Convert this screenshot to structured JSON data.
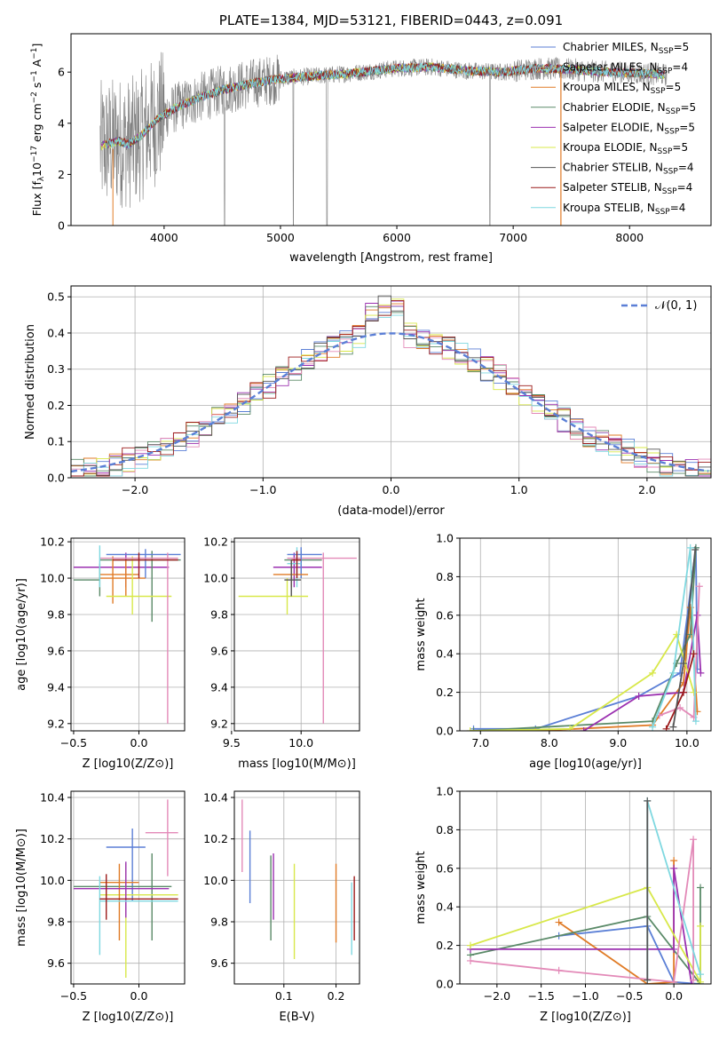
{
  "colors": {
    "chabrier_miles": "#5b7fd6",
    "salpeter_miles": "#a0a0a0",
    "kroupa_miles": "#e07b26",
    "chabrier_elodie": "#5a8a68",
    "salpeter_elodie": "#9b30b0",
    "kroupa_elodie": "#d8e84a",
    "chabrier_stelib": "#555555",
    "salpeter_stelib": "#9c1b1b",
    "kroupa_stelib": "#7fd8e0",
    "pink": "#e38ab8",
    "gauss": "#5b7fd6",
    "spectrum_grey": "#808080"
  },
  "chart_data": [
    {
      "id": "spectrum",
      "type": "line",
      "title": "PLATE=1384, MJD=53121, FIBERID=0443, z=0.091",
      "xlabel": "wavelength [Angstrom, rest frame]",
      "ylabel": "Flux [f_λ 10^-17 erg cm^-2 s^-1 A^-1]",
      "xlim": [
        3200,
        8700
      ],
      "ylim": [
        0,
        7.5
      ],
      "xticks": [
        4000,
        5000,
        6000,
        7000,
        8000
      ],
      "yticks": [
        0,
        2,
        4,
        6
      ],
      "legend_position": "upper right",
      "legend": [
        {
          "label": "Chabrier MILES, N",
          "sub": "SSP",
          "suffix": "=5"
        },
        {
          "label": "Salpeter MILES, N",
          "sub": "SSP",
          "suffix": "=4"
        },
        {
          "label": "Kroupa MILES, N",
          "sub": "SSP",
          "suffix": "=5"
        },
        {
          "label": "Chabrier ELODIE, N",
          "sub": "SSP",
          "suffix": "=5"
        },
        {
          "label": "Salpeter ELODIE, N",
          "sub": "SSP",
          "suffix": "=5"
        },
        {
          "label": "Kroupa ELODIE, N",
          "sub": "SSP",
          "suffix": "=5"
        },
        {
          "label": "Chabrier STELIB, N",
          "sub": "SSP",
          "suffix": "=4"
        },
        {
          "label": "Salpeter STELIB, N",
          "sub": "SSP",
          "suffix": "=4"
        },
        {
          "label": "Kroupa STELIB, N",
          "sub": "SSP",
          "suffix": "=4"
        }
      ],
      "continuum_model": [
        [
          3450,
          3.1
        ],
        [
          3600,
          3.3
        ],
        [
          3700,
          3.2
        ],
        [
          3800,
          3.5
        ],
        [
          3950,
          4.2
        ],
        [
          4100,
          4.6
        ],
        [
          4300,
          5.0
        ],
        [
          4500,
          5.3
        ],
        [
          4800,
          5.6
        ],
        [
          5000,
          5.75
        ],
        [
          5300,
          5.85
        ],
        [
          5600,
          5.95
        ],
        [
          6000,
          6.15
        ],
        [
          6300,
          6.2
        ],
        [
          6600,
          6.05
        ],
        [
          6900,
          6.0
        ],
        [
          7200,
          6.15
        ],
        [
          7500,
          6.1
        ],
        [
          7800,
          6.0
        ],
        [
          8100,
          5.95
        ],
        [
          8300,
          5.9
        ]
      ]
    },
    {
      "id": "residuals",
      "type": "histogram",
      "xlabel": "(data-model)/error",
      "ylabel": "Normed distribution",
      "xlim": [
        -2.5,
        2.5
      ],
      "ylim": [
        0,
        0.53
      ],
      "xticks": [
        -2,
        -1,
        0,
        1,
        2
      ],
      "yticks": [
        0.0,
        0.1,
        0.2,
        0.3,
        0.4,
        0.5
      ],
      "legend": "𝒩(0, 1)",
      "legend_position": "upper right",
      "bin_width": 0.1
    },
    {
      "id": "age_vs_Z",
      "type": "errorbar",
      "xlabel": "Z [log10(Z/Z⊙)]",
      "ylabel": "age  [log10(age/yr)]",
      "xlim": [
        -0.52,
        0.35
      ],
      "ylim": [
        9.16,
        10.22
      ],
      "xticks": [
        -0.5,
        0.0
      ],
      "yticks": [
        9.2,
        9.4,
        9.6,
        9.8,
        10.0,
        10.2
      ],
      "points": [
        {
          "x": -0.3,
          "y": 9.99,
          "xlo": -0.5,
          "xhi": -0.3,
          "ylo": 9.9,
          "yhi": 10.08,
          "c": "chabrier_elodie"
        },
        {
          "x": -0.1,
          "y": 10.06,
          "xlo": -0.5,
          "xhi": 0.23,
          "ylo": 9.95,
          "yhi": 10.14,
          "c": "salpeter_elodie"
        },
        {
          "x": 0.1,
          "y": 10.1,
          "xlo": -0.3,
          "xhi": 0.32,
          "ylo": 9.76,
          "yhi": 10.15,
          "c": "chabrier_elodie"
        },
        {
          "x": 0.05,
          "y": 10.13,
          "xlo": -0.25,
          "xhi": 0.32,
          "ylo": 10.0,
          "yhi": 10.16,
          "c": "chabrier_miles"
        },
        {
          "x": -0.1,
          "y": 10.02,
          "xlo": -0.3,
          "xhi": 0.0,
          "ylo": 9.9,
          "yhi": 10.1,
          "c": "kroupa_miles"
        },
        {
          "x": -0.2,
          "y": 10.0,
          "xlo": -0.3,
          "xhi": 0.05,
          "ylo": 9.86,
          "yhi": 10.12,
          "c": "kroupa_miles"
        },
        {
          "x": -0.05,
          "y": 9.9,
          "xlo": -0.25,
          "xhi": 0.25,
          "ylo": 9.8,
          "yhi": 10.12,
          "c": "kroupa_elodie"
        },
        {
          "x": 0.22,
          "y": 10.11,
          "xlo": -0.3,
          "xhi": 0.3,
          "ylo": 9.2,
          "yhi": 10.14,
          "c": "pink"
        },
        {
          "x": -0.3,
          "y": 10.08,
          "xlo": -0.3,
          "xhi": -0.3,
          "ylo": 9.95,
          "yhi": 10.18,
          "c": "kroupa_stelib"
        },
        {
          "x": 0.0,
          "y": 10.1,
          "xlo": -0.2,
          "xhi": 0.3,
          "ylo": 10.0,
          "yhi": 10.14,
          "c": "salpeter_stelib"
        }
      ]
    },
    {
      "id": "age_vs_mass",
      "type": "errorbar",
      "xlabel": "mass [log10(M/M⊙)]",
      "ylabel": "",
      "xlim": [
        9.52,
        10.42
      ],
      "ylim": [
        9.16,
        10.22
      ],
      "xticks": [
        9.5,
        10.0
      ],
      "yticks": [
        9.2,
        9.4,
        9.6,
        9.8,
        10.0,
        10.2
      ],
      "points": [
        {
          "x": 9.9,
          "y": 9.9,
          "xlo": 9.55,
          "xhi": 10.05,
          "ylo": 9.8,
          "yhi": 10.0,
          "c": "kroupa_elodie"
        },
        {
          "x": 10.0,
          "y": 10.1,
          "xlo": 9.88,
          "xhi": 10.15,
          "ylo": 10.0,
          "yhi": 10.15,
          "c": "chabrier_elodie"
        },
        {
          "x": 9.95,
          "y": 10.06,
          "xlo": 9.8,
          "xhi": 10.15,
          "ylo": 9.95,
          "yhi": 10.14,
          "c": "salpeter_elodie"
        },
        {
          "x": 10.16,
          "y": 10.11,
          "xlo": 9.9,
          "xhi": 10.4,
          "ylo": 9.2,
          "yhi": 10.14,
          "c": "pink"
        },
        {
          "x": 10.0,
          "y": 10.13,
          "xlo": 9.9,
          "xhi": 10.15,
          "ylo": 10.0,
          "yhi": 10.17,
          "c": "chabrier_miles"
        },
        {
          "x": 9.93,
          "y": 10.02,
          "xlo": 9.8,
          "xhi": 10.05,
          "ylo": 9.95,
          "yhi": 10.1,
          "c": "kroupa_miles"
        },
        {
          "x": 9.97,
          "y": 10.08,
          "xlo": 9.9,
          "xhi": 10.0,
          "ylo": 9.95,
          "yhi": 10.17,
          "c": "kroupa_stelib"
        },
        {
          "x": 9.97,
          "y": 10.1,
          "xlo": 9.93,
          "xhi": 10.0,
          "ylo": 10.0,
          "yhi": 10.15,
          "c": "salpeter_stelib"
        },
        {
          "x": 9.93,
          "y": 9.99,
          "xlo": 9.88,
          "xhi": 10.0,
          "ylo": 9.9,
          "yhi": 10.1,
          "c": "chabrier_stelib"
        }
      ]
    },
    {
      "id": "weight_vs_age",
      "type": "line",
      "xlabel": "age  [log10(age/yr)]",
      "ylabel": "mass weight",
      "xlim": [
        6.7,
        10.35
      ],
      "ylim": [
        0,
        1.0
      ],
      "xticks": [
        7,
        8,
        9,
        10
      ],
      "yticks": [
        0.0,
        0.2,
        0.4,
        0.6,
        0.8,
        1.0
      ],
      "series": [
        {
          "c": "chabrier_miles",
          "x": [
            6.9,
            7.8,
            9.3,
            9.9,
            10.13,
            10.15
          ],
          "y": [
            0.01,
            0.01,
            0.18,
            0.3,
            0.95,
            0.32
          ]
        },
        {
          "c": "kroupa_miles",
          "x": [
            7.8,
            9.5,
            9.95,
            10.05,
            10.15
          ],
          "y": [
            0.0,
            0.03,
            0.25,
            0.64,
            0.1
          ]
        },
        {
          "c": "chabrier_elodie",
          "x": [
            6.9,
            9.5,
            9.85,
            10.05,
            10.13
          ],
          "y": [
            0.0,
            0.05,
            0.35,
            0.5,
            0.95
          ]
        },
        {
          "c": "salpeter_elodie",
          "x": [
            8.5,
            9.3,
            9.95,
            10.15,
            10.2
          ],
          "y": [
            0.0,
            0.18,
            0.2,
            0.6,
            0.3
          ]
        },
        {
          "c": "kroupa_elodie",
          "x": [
            6.85,
            8.3,
            9.5,
            9.85,
            10.1
          ],
          "y": [
            0.0,
            0.01,
            0.3,
            0.5,
            0.2
          ]
        },
        {
          "c": "pink",
          "x": [
            9.6,
            9.9,
            10.1,
            10.18
          ],
          "y": [
            0.08,
            0.12,
            0.07,
            0.75
          ]
        },
        {
          "c": "kroupa_stelib",
          "x": [
            9.5,
            9.8,
            10.05,
            10.13
          ],
          "y": [
            0.02,
            0.3,
            0.95,
            0.05
          ]
        },
        {
          "c": "salpeter_stelib",
          "x": [
            9.7,
            9.95,
            10.1
          ],
          "y": [
            0.01,
            0.2,
            0.4
          ]
        },
        {
          "c": "chabrier_stelib",
          "x": [
            9.8,
            9.95,
            10.12
          ],
          "y": [
            0.02,
            0.35,
            0.94
          ]
        }
      ]
    },
    {
      "id": "mass_vs_Z",
      "type": "errorbar",
      "xlabel": "Z [log10(Z/Z⊙)]",
      "ylabel": "mass [log10(M/M⊙)]",
      "xlim": [
        -0.52,
        0.35
      ],
      "ylim": [
        9.5,
        10.43
      ],
      "xticks": [
        -0.5,
        0.0
      ],
      "yticks": [
        9.6,
        9.8,
        10.0,
        10.2,
        10.4
      ],
      "points": [
        {
          "x": 0.22,
          "y": 10.23,
          "xlo": 0.05,
          "xhi": 0.3,
          "ylo": 10.02,
          "yhi": 10.39,
          "c": "pink"
        },
        {
          "x": -0.05,
          "y": 10.16,
          "xlo": -0.25,
          "xhi": 0.05,
          "ylo": 9.9,
          "yhi": 10.25,
          "c": "chabrier_miles"
        },
        {
          "x": 0.1,
          "y": 9.97,
          "xlo": -0.5,
          "xhi": 0.25,
          "ylo": 9.71,
          "yhi": 10.13,
          "c": "chabrier_elodie"
        },
        {
          "x": -0.1,
          "y": 9.93,
          "xlo": -0.3,
          "xhi": 0.3,
          "ylo": 9.53,
          "yhi": 10.08,
          "c": "kroupa_elodie"
        },
        {
          "x": -0.15,
          "y": 9.99,
          "xlo": -0.3,
          "xhi": 0.0,
          "ylo": 9.71,
          "yhi": 10.08,
          "c": "kroupa_miles"
        },
        {
          "x": -0.1,
          "y": 9.96,
          "xlo": -0.5,
          "xhi": 0.23,
          "ylo": 9.82,
          "yhi": 10.09,
          "c": "salpeter_elodie"
        },
        {
          "x": -0.3,
          "y": 9.9,
          "xlo": -0.3,
          "xhi": 0.3,
          "ylo": 9.64,
          "yhi": 10.02,
          "c": "kroupa_stelib"
        },
        {
          "x": -0.25,
          "y": 9.91,
          "xlo": -0.3,
          "xhi": 0.3,
          "ylo": 9.81,
          "yhi": 10.03,
          "c": "salpeter_stelib"
        }
      ]
    },
    {
      "id": "mass_vs_ebv",
      "type": "errorbar",
      "xlabel": "E(B-V)",
      "ylabel": "",
      "xlim": [
        0.005,
        0.245
      ],
      "ylim": [
        9.5,
        10.43
      ],
      "xticks": [
        0.1,
        0.2
      ],
      "yticks": [
        9.6,
        9.8,
        10.0,
        10.2,
        10.4
      ],
      "points": [
        {
          "x": 0.02,
          "y": 10.23,
          "xlo": 0.02,
          "xhi": 0.02,
          "ylo": 10.04,
          "yhi": 10.39,
          "c": "pink"
        },
        {
          "x": 0.035,
          "y": 10.07,
          "xlo": 0.035,
          "xhi": 0.035,
          "ylo": 9.89,
          "yhi": 10.24,
          "c": "chabrier_miles"
        },
        {
          "x": 0.075,
          "y": 9.9,
          "xlo": 0.075,
          "xhi": 0.075,
          "ylo": 9.71,
          "yhi": 10.12,
          "c": "chabrier_elodie"
        },
        {
          "x": 0.08,
          "y": 9.97,
          "xlo": 0.08,
          "xhi": 0.08,
          "ylo": 9.81,
          "yhi": 10.13,
          "c": "salpeter_elodie"
        },
        {
          "x": 0.12,
          "y": 9.85,
          "xlo": 0.12,
          "xhi": 0.12,
          "ylo": 9.62,
          "yhi": 10.08,
          "c": "kroupa_elodie"
        },
        {
          "x": 0.2,
          "y": 9.9,
          "xlo": 0.2,
          "xhi": 0.2,
          "ylo": 9.7,
          "yhi": 10.08,
          "c": "kroupa_miles"
        },
        {
          "x": 0.23,
          "y": 9.83,
          "xlo": 0.23,
          "xhi": 0.23,
          "ylo": 9.64,
          "yhi": 9.99,
          "c": "kroupa_stelib"
        },
        {
          "x": 0.235,
          "y": 9.86,
          "xlo": 0.235,
          "xhi": 0.235,
          "ylo": 9.71,
          "yhi": 10.02,
          "c": "salpeter_stelib"
        }
      ]
    },
    {
      "id": "weight_vs_Z",
      "type": "line",
      "xlabel": "Z [log10(Z/Z⊙)]",
      "ylabel": "mass weight",
      "xlim": [
        -2.42,
        0.42
      ],
      "ylim": [
        0,
        1.0
      ],
      "xticks": [
        -2.0,
        -1.5,
        -1.0,
        -0.5,
        0.0
      ],
      "yticks": [
        0.0,
        0.2,
        0.4,
        0.6,
        0.8,
        1.0
      ],
      "series": [
        {
          "c": "chabrier_miles",
          "x": [
            -1.3,
            -0.3,
            0.0,
            0.3
          ],
          "y": [
            0.25,
            0.3,
            0.01,
            0.0
          ]
        },
        {
          "c": "kroupa_miles",
          "x": [
            -1.3,
            -0.3,
            0.0,
            0.0
          ],
          "y": [
            0.32,
            0.0,
            0.01,
            0.64
          ]
        },
        {
          "c": "chabrier_elodie",
          "x": [
            -2.3,
            -0.3,
            0.3,
            0.3
          ],
          "y": [
            0.15,
            0.35,
            0.0,
            0.5
          ]
        },
        {
          "c": "salpeter_elodie",
          "x": [
            -2.3,
            0.0,
            0.0,
            0.2
          ],
          "y": [
            0.18,
            0.18,
            0.6,
            0.0
          ]
        },
        {
          "c": "kroupa_elodie",
          "x": [
            -2.3,
            -0.3,
            0.3,
            0.3
          ],
          "y": [
            0.2,
            0.5,
            0.01,
            0.3
          ]
        },
        {
          "c": "pink",
          "x": [
            -2.3,
            -1.3,
            0.0,
            0.22,
            0.22
          ],
          "y": [
            0.12,
            0.07,
            0.01,
            0.75,
            0.02
          ]
        },
        {
          "c": "kroupa_stelib",
          "x": [
            -0.3,
            -0.3,
            0.3
          ],
          "y": [
            0.02,
            0.95,
            0.05
          ]
        },
        {
          "c": "chabrier_stelib",
          "x": [
            -0.3,
            -0.3
          ],
          "y": [
            0.02,
            0.95
          ]
        }
      ]
    }
  ]
}
